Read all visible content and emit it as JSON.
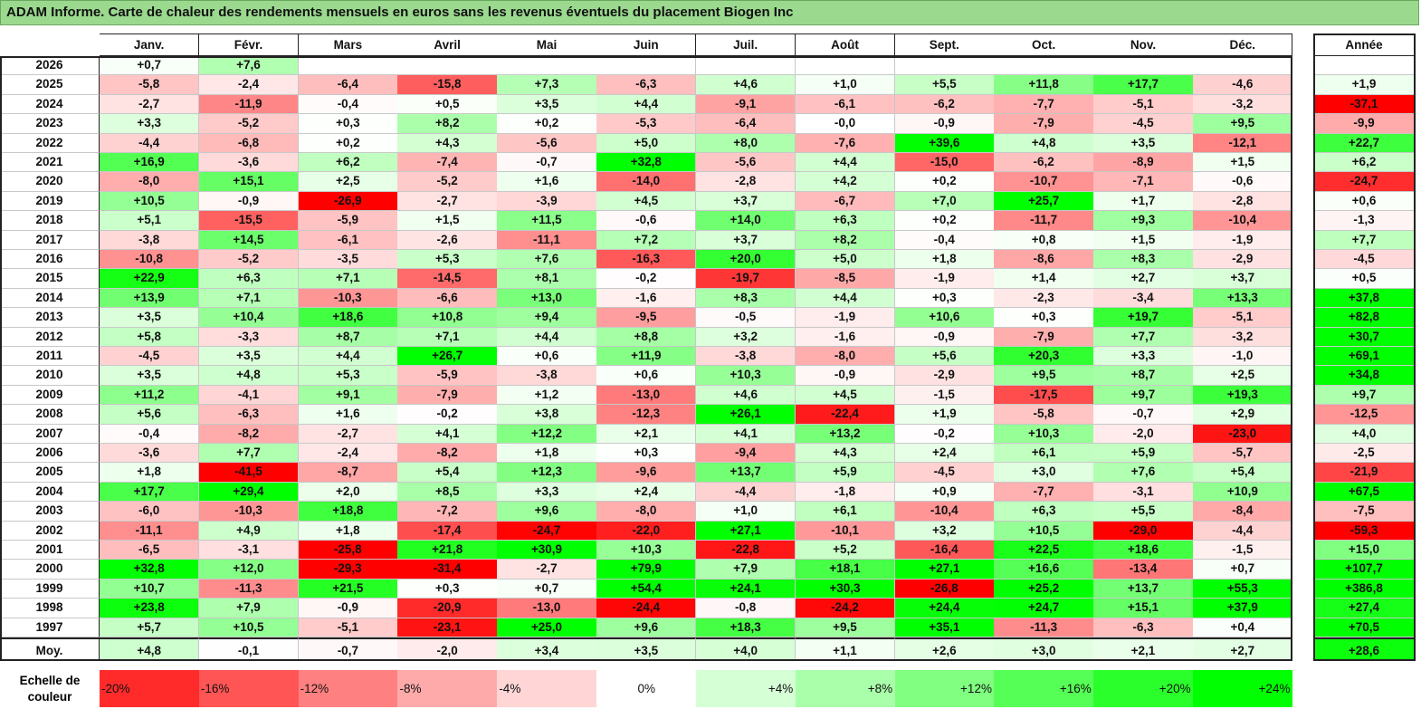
{
  "title": "ADAM Informe. Carte de chaleur des rendements mensuels en euros sans les revenus éventuels du placement Biogen Inc",
  "chart_data": {
    "type": "heatmap",
    "months": [
      "Janv.",
      "Févr.",
      "Mars",
      "Avril",
      "Mai",
      "Juin",
      "Juil.",
      "Août",
      "Sept.",
      "Oct.",
      "Nov.",
      "Déc."
    ],
    "year_header": "Année",
    "rows": [
      {
        "year": "2026",
        "values": [
          "+0,7",
          "+7,6",
          "",
          "",
          "",
          "",
          "",
          "",
          "",
          "",
          "",
          ""
        ],
        "annual": ""
      },
      {
        "year": "2025",
        "values": [
          "-5,8",
          "-2,4",
          "-6,4",
          "-15,8",
          "+7,3",
          "-6,3",
          "+4,6",
          "+1,0",
          "+5,5",
          "+11,8",
          "+17,7",
          "-4,6"
        ],
        "annual": "+1,9"
      },
      {
        "year": "2024",
        "values": [
          "-2,7",
          "-11,9",
          "-0,4",
          "+0,5",
          "+3,5",
          "+4,4",
          "-9,1",
          "-6,1",
          "-6,2",
          "-7,7",
          "-5,1",
          "-3,2"
        ],
        "annual": "-37,1"
      },
      {
        "year": "2023",
        "values": [
          "+3,3",
          "-5,2",
          "+0,3",
          "+8,2",
          "+0,2",
          "-5,3",
          "-6,4",
          "-0,0",
          "-0,9",
          "-7,9",
          "-4,5",
          "+9,5"
        ],
        "annual": "-9,9"
      },
      {
        "year": "2022",
        "values": [
          "-4,4",
          "-6,8",
          "+0,2",
          "+4,3",
          "-5,6",
          "+5,0",
          "+8,0",
          "-7,6",
          "+39,6",
          "+4,8",
          "+3,5",
          "-12,1"
        ],
        "annual": "+22,7"
      },
      {
        "year": "2021",
        "values": [
          "+16,9",
          "-3,6",
          "+6,2",
          "-7,4",
          "-0,7",
          "+32,8",
          "-5,6",
          "+4,4",
          "-15,0",
          "-6,2",
          "-8,9",
          "+1,5"
        ],
        "annual": "+6,2"
      },
      {
        "year": "2020",
        "values": [
          "-8,0",
          "+15,1",
          "+2,5",
          "-5,2",
          "+1,6",
          "-14,0",
          "-2,8",
          "+4,2",
          "+0,2",
          "-10,7",
          "-7,1",
          "-0,6"
        ],
        "annual": "-24,7"
      },
      {
        "year": "2019",
        "values": [
          "+10,5",
          "-0,9",
          "-26,9",
          "-2,7",
          "-3,9",
          "+4,5",
          "+3,7",
          "-6,7",
          "+7,0",
          "+25,7",
          "+1,7",
          "-2,8"
        ],
        "annual": "+0,6"
      },
      {
        "year": "2018",
        "values": [
          "+5,1",
          "-15,5",
          "-5,9",
          "+1,5",
          "+11,5",
          "-0,6",
          "+14,0",
          "+6,3",
          "+0,2",
          "-11,7",
          "+9,3",
          "-10,4"
        ],
        "annual": "-1,3"
      },
      {
        "year": "2017",
        "values": [
          "-3,8",
          "+14,5",
          "-6,1",
          "-2,6",
          "-11,1",
          "+7,2",
          "+3,7",
          "+8,2",
          "-0,4",
          "+0,8",
          "+1,5",
          "-1,9"
        ],
        "annual": "+7,7"
      },
      {
        "year": "2016",
        "values": [
          "-10,8",
          "-5,2",
          "-3,5",
          "+5,3",
          "+7,6",
          "-16,3",
          "+20,0",
          "+5,0",
          "+1,8",
          "-8,6",
          "+8,3",
          "-2,9"
        ],
        "annual": "-4,5"
      },
      {
        "year": "2015",
        "values": [
          "+22,9",
          "+6,3",
          "+7,1",
          "-14,5",
          "+8,1",
          "-0,2",
          "-19,7",
          "-8,5",
          "-1,9",
          "+1,4",
          "+2,7",
          "+3,7"
        ],
        "annual": "+0,5"
      },
      {
        "year": "2014",
        "values": [
          "+13,9",
          "+7,1",
          "-10,3",
          "-6,6",
          "+13,0",
          "-1,6",
          "+8,3",
          "+4,4",
          "+0,3",
          "-2,3",
          "-3,4",
          "+13,3"
        ],
        "annual": "+37,8"
      },
      {
        "year": "2013",
        "values": [
          "+3,5",
          "+10,4",
          "+18,6",
          "+10,8",
          "+9,4",
          "-9,5",
          "-0,5",
          "-1,9",
          "+10,6",
          "+0,3",
          "+19,7",
          "-5,1"
        ],
        "annual": "+82,8"
      },
      {
        "year": "2012",
        "values": [
          "+5,8",
          "-3,3",
          "+8,7",
          "+7,1",
          "+4,4",
          "+8,8",
          "+3,2",
          "-1,6",
          "-0,9",
          "-7,9",
          "+7,7",
          "-3,2"
        ],
        "annual": "+30,7"
      },
      {
        "year": "2011",
        "values": [
          "-4,5",
          "+3,5",
          "+4,4",
          "+26,7",
          "+0,6",
          "+11,9",
          "-3,8",
          "-8,0",
          "+5,6",
          "+20,3",
          "+3,3",
          "-1,0"
        ],
        "annual": "+69,1"
      },
      {
        "year": "2010",
        "values": [
          "+3,5",
          "+4,8",
          "+5,3",
          "-5,9",
          "-3,8",
          "+0,6",
          "+10,3",
          "-0,9",
          "-2,9",
          "+9,5",
          "+8,7",
          "+2,5"
        ],
        "annual": "+34,8"
      },
      {
        "year": "2009",
        "values": [
          "+11,2",
          "-4,1",
          "+9,1",
          "-7,9",
          "+1,2",
          "-13,0",
          "+4,6",
          "+4,5",
          "-1,5",
          "-17,5",
          "+9,7",
          "+19,3"
        ],
        "annual": "+9,7"
      },
      {
        "year": "2008",
        "values": [
          "+5,6",
          "-6,3",
          "+1,6",
          "-0,2",
          "+3,8",
          "-12,3",
          "+26,1",
          "-22,4",
          "+1,9",
          "-5,8",
          "-0,7",
          "+2,9"
        ],
        "annual": "-12,5"
      },
      {
        "year": "2007",
        "values": [
          "-0,4",
          "-8,2",
          "-2,7",
          "+4,1",
          "+12,2",
          "+2,1",
          "+4,1",
          "+13,2",
          "-0,2",
          "+10,3",
          "-2,0",
          "-23,0"
        ],
        "annual": "+4,0"
      },
      {
        "year": "2006",
        "values": [
          "-3,6",
          "+7,7",
          "-2,4",
          "-8,2",
          "+1,8",
          "+0,3",
          "-9,4",
          "+4,3",
          "+2,4",
          "+6,1",
          "+5,9",
          "-5,7"
        ],
        "annual": "-2,5"
      },
      {
        "year": "2005",
        "values": [
          "+1,8",
          "-41,5",
          "-8,7",
          "+5,4",
          "+12,3",
          "-9,6",
          "+13,7",
          "+5,9",
          "-4,5",
          "+3,0",
          "+7,6",
          "+5,4"
        ],
        "annual": "-21,9"
      },
      {
        "year": "2004",
        "values": [
          "+17,7",
          "+29,4",
          "+2,0",
          "+8,5",
          "+3,3",
          "+2,4",
          "-4,4",
          "-1,8",
          "+0,9",
          "-7,7",
          "-3,1",
          "+10,9"
        ],
        "annual": "+67,5"
      },
      {
        "year": "2003",
        "values": [
          "-6,0",
          "-10,3",
          "+18,8",
          "-7,2",
          "+9,6",
          "-8,0",
          "+1,0",
          "+6,1",
          "-10,4",
          "+6,3",
          "+5,5",
          "-8,4"
        ],
        "annual": "-7,5"
      },
      {
        "year": "2002",
        "values": [
          "-11,1",
          "+4,9",
          "+1,8",
          "-17,4",
          "-24,7",
          "-22,0",
          "+27,1",
          "-10,1",
          "+3,2",
          "+10,5",
          "-29,0",
          "-4,4"
        ],
        "annual": "-59,3"
      },
      {
        "year": "2001",
        "values": [
          "-6,5",
          "-3,1",
          "-25,8",
          "+21,8",
          "+30,9",
          "+10,3",
          "-22,8",
          "+5,2",
          "-16,4",
          "+22,5",
          "+18,6",
          "-1,5"
        ],
        "annual": "+15,0"
      },
      {
        "year": "2000",
        "values": [
          "+32,8",
          "+12,0",
          "-29,3",
          "-31,4",
          "-2,7",
          "+79,9",
          "+7,9",
          "+18,1",
          "+27,1",
          "+16,6",
          "-13,4",
          "+0,7"
        ],
        "annual": "+107,7"
      },
      {
        "year": "1999",
        "values": [
          "+10,7",
          "-11,3",
          "+21,5",
          "+0,3",
          "+0,7",
          "+54,4",
          "+24,1",
          "+30,3",
          "-26,8",
          "+25,2",
          "+13,7",
          "+55,3"
        ],
        "annual": "+386,8"
      },
      {
        "year": "1998",
        "values": [
          "+23,8",
          "+7,9",
          "-0,9",
          "-20,9",
          "-13,0",
          "-24,4",
          "-0,8",
          "-24,2",
          "+24,4",
          "+24,7",
          "+15,1",
          "+37,9"
        ],
        "annual": "+27,4"
      },
      {
        "year": "1997",
        "values": [
          "+5,7",
          "+10,5",
          "-5,1",
          "-23,1",
          "+25,0",
          "+9,6",
          "+18,3",
          "+9,5",
          "+35,1",
          "-11,3",
          "-6,3",
          "+0,4"
        ],
        "annual": "+70,5"
      }
    ],
    "average": {
      "label": "Moy.",
      "values": [
        "+4,8",
        "-0,1",
        "-0,7",
        "-2,0",
        "+3,4",
        "+3,5",
        "+4,0",
        "+1,1",
        "+2,6",
        "+3,0",
        "+2,1",
        "+2,7"
      ],
      "annual": "+28,6"
    },
    "scale": {
      "label": "Echelle de couleur",
      "steps": [
        "-20%",
        "-16%",
        "-12%",
        "-8%",
        "-4%",
        "0%",
        "+4%",
        "+8%",
        "+12%",
        "+16%",
        "+20%",
        "+24%"
      ]
    },
    "colors": {
      "negative": "#ff0000",
      "neutral": "#ffffff",
      "positive": "#00ff00",
      "title_bar": "#9bd98f"
    }
  }
}
